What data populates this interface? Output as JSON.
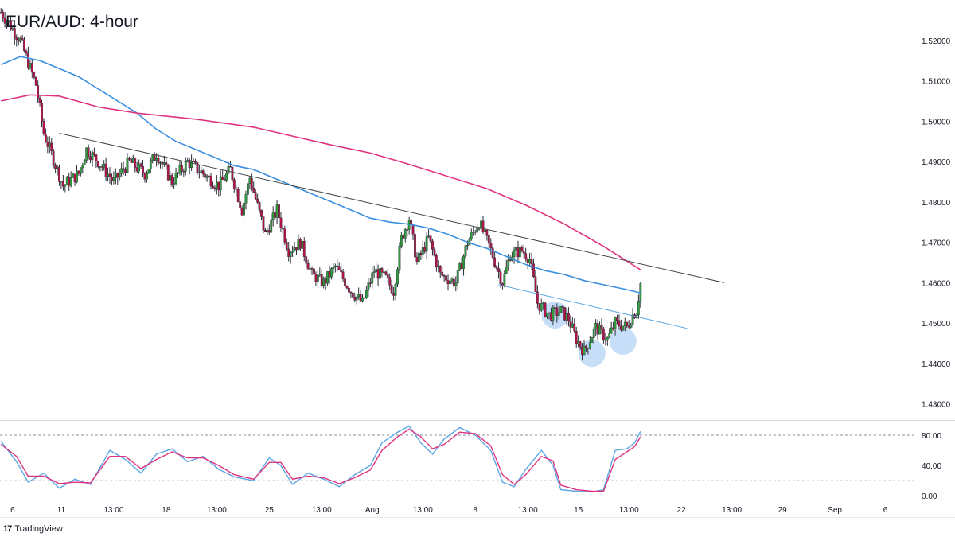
{
  "title": "EUR/AUD: 4-hour",
  "brand": "TradingView",
  "brand_icon": "tradingview-logo-icon",
  "colors": {
    "up": "#26a69a",
    "up_fill": "#2e9e3a",
    "down": "#b5124a",
    "ma_fast": "#3a8fe0",
    "ma_slow": "#e0337f",
    "trendline": "#444444",
    "support": "#5aa6e6",
    "highlight": "#bcd8f6",
    "stoch_k": "#5aa6e6",
    "stoch_d": "#e0337f"
  },
  "chart_data": [
    {
      "type": "candlestick",
      "title": "EUR/AUD: 4-hour",
      "ylim": [
        1.426,
        1.53
      ],
      "y_ticks": [
        "1.52000",
        "1.51000",
        "1.50000",
        "1.49000",
        "1.48000",
        "1.47000",
        "1.46000",
        "1.45000",
        "1.44000",
        "1.43000"
      ],
      "x_ticks": [
        "6",
        "11",
        "13:00",
        "18",
        "13:00",
        "25",
        "13:00",
        "Aug",
        "13:00",
        "8",
        "13:00",
        "15",
        "13:00",
        "22",
        "13:00",
        "29",
        "Sep",
        "6"
      ],
      "x_tick_index": [
        6,
        31,
        58,
        85,
        111,
        138,
        165,
        191,
        217,
        244,
        271,
        297,
        323,
        350,
        376,
        402,
        429,
        455
      ],
      "n_slots": 470,
      "anchors": [
        [
          0,
          1.527
        ],
        [
          10,
          1.52
        ],
        [
          18,
          1.509
        ],
        [
          22,
          1.497
        ],
        [
          32,
          1.484
        ],
        [
          40,
          1.487
        ],
        [
          44,
          1.493
        ],
        [
          50,
          1.49
        ],
        [
          58,
          1.485
        ],
        [
          66,
          1.49
        ],
        [
          74,
          1.487
        ],
        [
          80,
          1.492
        ],
        [
          88,
          1.485
        ],
        [
          96,
          1.49
        ],
        [
          104,
          1.487
        ],
        [
          112,
          1.484
        ],
        [
          118,
          1.488
        ],
        [
          124,
          1.478
        ],
        [
          128,
          1.486
        ],
        [
          136,
          1.472
        ],
        [
          142,
          1.478
        ],
        [
          148,
          1.468
        ],
        [
          154,
          1.47
        ],
        [
          160,
          1.462
        ],
        [
          166,
          1.46
        ],
        [
          172,
          1.464
        ],
        [
          180,
          1.458
        ],
        [
          186,
          1.455
        ],
        [
          192,
          1.463
        ],
        [
          198,
          1.461
        ],
        [
          202,
          1.458
        ],
        [
          206,
          1.471
        ],
        [
          210,
          1.476
        ],
        [
          214,
          1.465
        ],
        [
          220,
          1.471
        ],
        [
          226,
          1.462
        ],
        [
          234,
          1.46
        ],
        [
          240,
          1.47
        ],
        [
          246,
          1.475
        ],
        [
          252,
          1.468
        ],
        [
          258,
          1.46
        ],
        [
          262,
          1.467
        ],
        [
          268,
          1.468
        ],
        [
          272,
          1.466
        ],
        [
          276,
          1.455
        ],
        [
          282,
          1.452
        ],
        [
          288,
          1.453
        ],
        [
          292,
          1.451
        ],
        [
          296,
          1.446
        ],
        [
          300,
          1.443
        ],
        [
          306,
          1.449
        ],
        [
          312,
          1.446
        ],
        [
          316,
          1.45
        ],
        [
          322,
          1.449
        ],
        [
          325,
          1.452
        ],
        [
          327,
          1.453
        ],
        [
          329,
          1.46
        ]
      ],
      "series": [
        {
          "name": "",
          "kind": "moving-average",
          "points": [
            [
              0,
              1.514
            ],
            [
              10,
              1.516
            ],
            [
              20,
              1.515
            ],
            [
              30,
              1.513
            ],
            [
              40,
              1.511
            ],
            [
              50,
              1.508
            ],
            [
              60,
              1.505
            ],
            [
              70,
              1.502
            ],
            [
              80,
              1.498
            ],
            [
              90,
              1.495
            ],
            [
              100,
              1.493
            ],
            [
              110,
              1.491
            ],
            [
              120,
              1.489
            ],
            [
              130,
              1.488
            ],
            [
              140,
              1.486
            ],
            [
              150,
              1.484
            ],
            [
              160,
              1.482
            ],
            [
              170,
              1.48
            ],
            [
              180,
              1.478
            ],
            [
              190,
              1.476
            ],
            [
              200,
              1.475
            ],
            [
              210,
              1.4745
            ],
            [
              220,
              1.4735
            ],
            [
              230,
              1.472
            ],
            [
              240,
              1.47
            ],
            [
              250,
              1.4685
            ],
            [
              260,
              1.4665
            ],
            [
              270,
              1.4645
            ],
            [
              280,
              1.463
            ],
            [
              290,
              1.462
            ],
            [
              300,
              1.4605
            ],
            [
              310,
              1.4595
            ],
            [
              320,
              1.4585
            ],
            [
              329,
              1.4575
            ]
          ]
        },
        {
          "name": "",
          "kind": "moving-average",
          "points": [
            [
              0,
              1.505
            ],
            [
              15,
              1.5065
            ],
            [
              30,
              1.5062
            ],
            [
              50,
              1.5035
            ],
            [
              70,
              1.502
            ],
            [
              100,
              1.5005
            ],
            [
              130,
              1.4985
            ],
            [
              150,
              1.4963
            ],
            [
              170,
              1.4941
            ],
            [
              190,
              1.4921
            ],
            [
              210,
              1.4893
            ],
            [
              230,
              1.4863
            ],
            [
              250,
              1.4833
            ],
            [
              270,
              1.4792
            ],
            [
              290,
              1.4745
            ],
            [
              310,
              1.469
            ],
            [
              329,
              1.4632
            ]
          ]
        },
        {
          "name": "",
          "kind": "trendline",
          "points": [
            [
              30,
              1.497
            ],
            [
              372,
              1.46
            ]
          ]
        },
        {
          "name": "",
          "kind": "trendline",
          "points": [
            [
              256,
              1.4595
            ],
            [
              353,
              1.4487
            ]
          ]
        }
      ],
      "highlights": [
        {
          "x": 285,
          "y": 1.452
        },
        {
          "x": 304,
          "y": 1.4425
        },
        {
          "x": 320,
          "y": 1.4455
        }
      ]
    },
    {
      "type": "line",
      "title": "",
      "ylim": [
        -5,
        100
      ],
      "y_ticks": [
        "80.00",
        "40.00",
        "0.00"
      ],
      "levels": [
        80,
        20
      ],
      "series": [
        {
          "name": "",
          "points": [
            [
              0,
              72
            ],
            [
              8,
              45
            ],
            [
              14,
              18
            ],
            [
              22,
              30
            ],
            [
              30,
              10
            ],
            [
              38,
              22
            ],
            [
              46,
              15
            ],
            [
              56,
              60
            ],
            [
              64,
              48
            ],
            [
              72,
              30
            ],
            [
              80,
              55
            ],
            [
              88,
              62
            ],
            [
              96,
              45
            ],
            [
              104,
              52
            ],
            [
              112,
              35
            ],
            [
              120,
              25
            ],
            [
              130,
              20
            ],
            [
              138,
              50
            ],
            [
              144,
              40
            ],
            [
              150,
              15
            ],
            [
              158,
              30
            ],
            [
              166,
              22
            ],
            [
              174,
              12
            ],
            [
              182,
              28
            ],
            [
              190,
              40
            ],
            [
              196,
              70
            ],
            [
              204,
              84
            ],
            [
              210,
              92
            ],
            [
              216,
              70
            ],
            [
              222,
              55
            ],
            [
              228,
              75
            ],
            [
              236,
              90
            ],
            [
              244,
              80
            ],
            [
              252,
              60
            ],
            [
              258,
              18
            ],
            [
              264,
              12
            ],
            [
              270,
              35
            ],
            [
              278,
              60
            ],
            [
              284,
              40
            ],
            [
              288,
              8
            ],
            [
              296,
              6
            ],
            [
              304,
              5
            ],
            [
              310,
              8
            ],
            [
              316,
              60
            ],
            [
              322,
              62
            ],
            [
              326,
              70
            ],
            [
              329,
              85
            ]
          ]
        },
        {
          "name": "",
          "points": [
            [
              0,
              68
            ],
            [
              8,
              52
            ],
            [
              14,
              26
            ],
            [
              22,
              26
            ],
            [
              30,
              16
            ],
            [
              38,
              18
            ],
            [
              46,
              17
            ],
            [
              56,
              52
            ],
            [
              64,
              52
            ],
            [
              72,
              36
            ],
            [
              80,
              48
            ],
            [
              88,
              58
            ],
            [
              96,
              50
            ],
            [
              104,
              50
            ],
            [
              112,
              40
            ],
            [
              120,
              28
            ],
            [
              130,
              22
            ],
            [
              138,
              44
            ],
            [
              144,
              44
            ],
            [
              150,
              22
            ],
            [
              158,
              26
            ],
            [
              166,
              24
            ],
            [
              174,
              16
            ],
            [
              182,
              24
            ],
            [
              190,
              34
            ],
            [
              196,
              60
            ],
            [
              204,
              78
            ],
            [
              210,
              88
            ],
            [
              216,
              78
            ],
            [
              222,
              62
            ],
            [
              228,
              68
            ],
            [
              236,
              84
            ],
            [
              244,
              82
            ],
            [
              252,
              66
            ],
            [
              258,
              28
            ],
            [
              264,
              15
            ],
            [
              270,
              28
            ],
            [
              278,
              52
            ],
            [
              284,
              46
            ],
            [
              288,
              14
            ],
            [
              296,
              8
            ],
            [
              304,
              6
            ],
            [
              310,
              6
            ],
            [
              316,
              48
            ],
            [
              322,
              58
            ],
            [
              326,
              65
            ],
            [
              329,
              78
            ]
          ]
        }
      ]
    }
  ]
}
